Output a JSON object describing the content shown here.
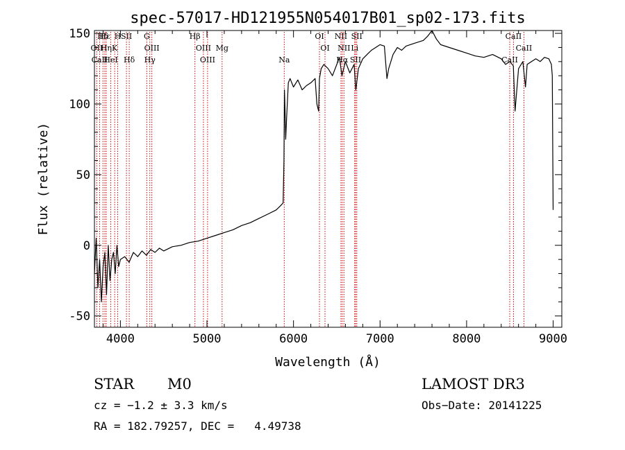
{
  "chart_data": {
    "type": "line",
    "title": "spec-57017-HD121955N054017B01_sp02-173.fits",
    "xlabel": "Wavelength (Å)",
    "ylabel": "Flux (relative)",
    "xlim": [
      3700,
      9100
    ],
    "ylim": [
      -58,
      152
    ],
    "xticks": [
      4000,
      5000,
      6000,
      7000,
      8000,
      9000
    ],
    "yticks": [
      -50,
      0,
      50,
      100,
      150
    ],
    "grid": false,
    "legend": "none",
    "series": [
      {
        "x": [
          3700,
          3720,
          3740,
          3760,
          3780,
          3800,
          3820,
          3840,
          3860,
          3880,
          3900,
          3920,
          3940,
          3960,
          3980,
          4000,
          4050,
          4100,
          4150,
          4200,
          4250,
          4300,
          4350,
          4400,
          4450,
          4500,
          4600,
          4700,
          4800,
          4900,
          5000,
          5100,
          5200,
          5300,
          5400,
          5500,
          5600,
          5700,
          5800,
          5850,
          5880,
          5890,
          5895,
          5900,
          5910,
          5920,
          5940,
          5960,
          6000,
          6050,
          6100,
          6150,
          6200,
          6250,
          6270,
          6290,
          6300,
          6320,
          6350,
          6400,
          6450,
          6500,
          6530,
          6560,
          6580,
          6600,
          6650,
          6700,
          6720,
          6750,
          6800,
          6850,
          6900,
          6950,
          7000,
          7050,
          7080,
          7100,
          7150,
          7200,
          7250,
          7300,
          7400,
          7500,
          7550,
          7600,
          7650,
          7700,
          7800,
          7900,
          8000,
          8100,
          8200,
          8300,
          8400,
          8450,
          8500,
          8540,
          8560,
          8600,
          8650,
          8680,
          8700,
          8750,
          8800,
          8850,
          8900,
          8950,
          8980,
          8990,
          9000
        ],
        "y": [
          -20,
          5,
          -30,
          -10,
          -40,
          -15,
          -5,
          -35,
          0,
          -25,
          -10,
          -5,
          -20,
          0,
          -15,
          -10,
          -8,
          -12,
          -5,
          -8,
          -4,
          -7,
          -3,
          -5,
          -2,
          -4,
          -1,
          0,
          2,
          3,
          5,
          7,
          9,
          11,
          14,
          16,
          19,
          22,
          25,
          28,
          30,
          60,
          110,
          100,
          75,
          90,
          115,
          118,
          112,
          117,
          110,
          113,
          115,
          118,
          100,
          95,
          118,
          125,
          128,
          125,
          120,
          128,
          133,
          120,
          125,
          130,
          122,
          128,
          110,
          125,
          132,
          135,
          138,
          140,
          142,
          141,
          118,
          125,
          135,
          140,
          138,
          141,
          143,
          145,
          148,
          152,
          146,
          142,
          140,
          138,
          136,
          134,
          133,
          135,
          132,
          128,
          130,
          127,
          95,
          125,
          130,
          112,
          128,
          130,
          132,
          130,
          133,
          132,
          128,
          120,
          25
        ]
      }
    ],
    "line_markers": [
      {
        "label": "Hδ",
        "x": 3798
      },
      {
        "label": "OII",
        "x": 3727
      },
      {
        "label": "CaII",
        "x": 3760
      },
      {
        "label": "Hε",
        "x": 3820
      },
      {
        "label": "K",
        "x": 3934
      },
      {
        "label": "HeI",
        "x": 3889
      },
      {
        "label": "H",
        "x": 3969
      },
      {
        "label": "Hη",
        "x": 3836
      },
      {
        "label": "Hδ",
        "x": 4102
      },
      {
        "label": "SII",
        "x": 4070
      },
      {
        "label": "OIII",
        "x": 4363
      },
      {
        "label": "Hγ",
        "x": 4340
      },
      {
        "label": "G",
        "x": 4305
      },
      {
        "label": "OIII",
        "x": 4959
      },
      {
        "label": "OIII",
        "x": 5007
      },
      {
        "label": "Hβ",
        "x": 4861
      },
      {
        "label": "Mg",
        "x": 5175
      },
      {
        "label": "Na",
        "x": 5893
      },
      {
        "label": "OI",
        "x": 6300
      },
      {
        "label": "OI",
        "x": 6364
      },
      {
        "label": "Hα",
        "x": 6563
      },
      {
        "label": "NII",
        "x": 6548
      },
      {
        "label": "NII",
        "x": 6583
      },
      {
        "label": "SII",
        "x": 6717
      },
      {
        "label": "SII",
        "x": 6731
      },
      {
        "label": "Li",
        "x": 6707
      },
      {
        "label": "CaII",
        "x": 8498
      },
      {
        "label": "CaII",
        "x": 8542
      },
      {
        "label": "CaII",
        "x": 8662
      }
    ]
  },
  "info": {
    "class_label": "STAR",
    "subclass": "M0",
    "survey": "LAMOST DR3",
    "cz": "cz = −1.2 ± 3.3 km/s",
    "obs_date": "Obs−Date: 20141225",
    "coords": "RA = 182.79257, DEC =   4.49738"
  },
  "colors": {
    "line": "#000000",
    "marker": "#cc0000",
    "axis": "#000000"
  }
}
